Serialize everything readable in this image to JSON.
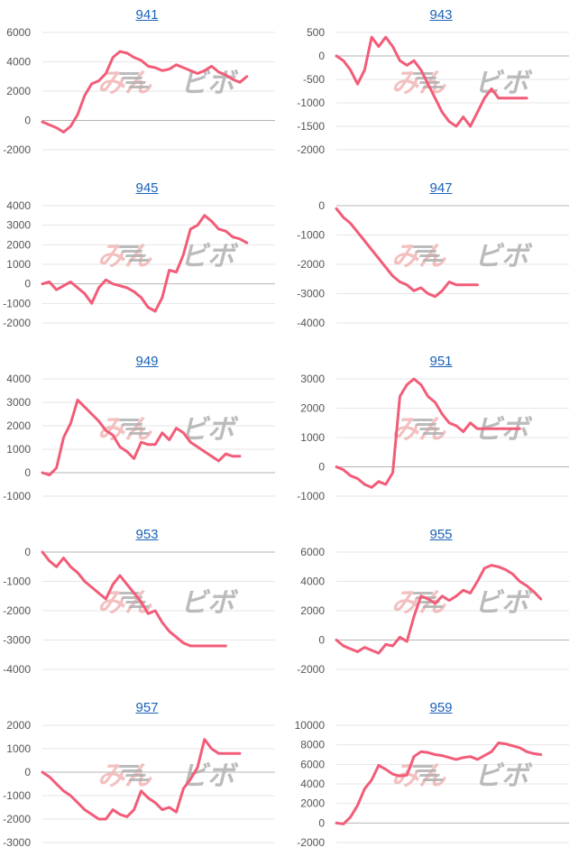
{
  "colors": {
    "line": "#f25c78",
    "link": "#1a62b8",
    "grid": "#e6e6e6",
    "zero": "#b4b4b4"
  },
  "watermark": {
    "left": "みん",
    "right": "ビボ"
  },
  "chart_data": [
    {
      "type": "line",
      "title": "941",
      "yticks": [
        6000,
        4000,
        2000,
        0,
        -2000
      ],
      "ylim": [
        -2000,
        6000
      ],
      "x": [
        0,
        1,
        2,
        3,
        4,
        5,
        6,
        7,
        8,
        9,
        10,
        11,
        12,
        13,
        14,
        15,
        16,
        17,
        18,
        19,
        20,
        21,
        22,
        23,
        24,
        25,
        26,
        27,
        28,
        29
      ],
      "values": [
        -100,
        -300,
        -500,
        -800,
        -400,
        400,
        1700,
        2500,
        2700,
        3200,
        4300,
        4700,
        4600,
        4300,
        4100,
        3700,
        3600,
        3400,
        3500,
        3800,
        3600,
        3400,
        3200,
        3400,
        3700,
        3300,
        3100,
        2800,
        2600,
        3000
      ]
    },
    {
      "type": "line",
      "title": "943",
      "yticks": [
        500,
        0,
        -500,
        -1000,
        -1500,
        -2000
      ],
      "ylim": [
        -2000,
        500
      ],
      "x": [
        0,
        1,
        2,
        3,
        4,
        5,
        6,
        7,
        8,
        9,
        10,
        11,
        12,
        13,
        14,
        15,
        16,
        17,
        18,
        19,
        20,
        21,
        22,
        23,
        24,
        25,
        26,
        27
      ],
      "values": [
        0,
        -100,
        -300,
        -600,
        -300,
        400,
        200,
        400,
        200,
        -100,
        -200,
        -100,
        -300,
        -600,
        -900,
        -1200,
        -1400,
        -1500,
        -1300,
        -1500,
        -1200,
        -900,
        -700,
        -900,
        -900,
        -900,
        -900,
        -900
      ]
    },
    {
      "type": "line",
      "title": "945",
      "yticks": [
        4000,
        3000,
        2000,
        1000,
        0,
        -1000,
        -2000
      ],
      "ylim": [
        -2000,
        4000
      ],
      "x": [
        0,
        1,
        2,
        3,
        4,
        5,
        6,
        7,
        8,
        9,
        10,
        11,
        12,
        13,
        14,
        15,
        16,
        17,
        18,
        19,
        20,
        21,
        22,
        23,
        24,
        25,
        26,
        27,
        28,
        29
      ],
      "values": [
        0,
        100,
        -300,
        -100,
        100,
        -200,
        -500,
        -1000,
        -200,
        200,
        0,
        -100,
        -200,
        -400,
        -700,
        -1200,
        -1400,
        -700,
        700,
        600,
        1500,
        2800,
        3000,
        3500,
        3200,
        2800,
        2700,
        2400,
        2300,
        2100
      ]
    },
    {
      "type": "line",
      "title": "947",
      "yticks": [
        0,
        -1000,
        -2000,
        -3000,
        -4000
      ],
      "ylim": [
        -4000,
        0
      ],
      "x": [
        0,
        1,
        2,
        3,
        4,
        5,
        6,
        7,
        8,
        9,
        10,
        11,
        12,
        13,
        14,
        15,
        16,
        17,
        18,
        19,
        20
      ],
      "values": [
        -100,
        -400,
        -600,
        -900,
        -1200,
        -1500,
        -1800,
        -2100,
        -2400,
        -2600,
        -2700,
        -2900,
        -2800,
        -3000,
        -3100,
        -2900,
        -2600,
        -2700,
        -2700,
        -2700,
        -2700
      ]
    },
    {
      "type": "line",
      "title": "949",
      "yticks": [
        4000,
        3000,
        2000,
        1000,
        0,
        -1000
      ],
      "ylim": [
        -1000,
        4000
      ],
      "x": [
        0,
        1,
        2,
        3,
        4,
        5,
        6,
        7,
        8,
        9,
        10,
        11,
        12,
        13,
        14,
        15,
        16,
        17,
        18,
        19,
        20,
        21,
        22,
        23,
        24,
        25,
        26,
        27,
        28
      ],
      "values": [
        0,
        -100,
        200,
        1500,
        2100,
        3100,
        2800,
        2500,
        2200,
        1800,
        1600,
        1100,
        900,
        600,
        1300,
        1200,
        1200,
        1700,
        1400,
        1900,
        1700,
        1300,
        1100,
        900,
        700,
        500,
        800,
        700,
        700
      ]
    },
    {
      "type": "line",
      "title": "951",
      "yticks": [
        3000,
        2000,
        1000,
        0,
        -1000
      ],
      "ylim": [
        -1000,
        3000
      ],
      "x": [
        0,
        1,
        2,
        3,
        4,
        5,
        6,
        7,
        8,
        9,
        10,
        11,
        12,
        13,
        14,
        15,
        16,
        17,
        18,
        19,
        20,
        21,
        22,
        23,
        24,
        25,
        26
      ],
      "values": [
        0,
        -100,
        -300,
        -400,
        -600,
        -700,
        -500,
        -600,
        -200,
        2400,
        2800,
        3000,
        2800,
        2400,
        2200,
        1800,
        1500,
        1400,
        1200,
        1500,
        1300,
        1300,
        1300,
        1300,
        1300,
        1300,
        1300
      ]
    },
    {
      "type": "line",
      "title": "953",
      "yticks": [
        0,
        -1000,
        -2000,
        -3000,
        -4000
      ],
      "ylim": [
        -4000,
        0
      ],
      "x": [
        0,
        1,
        2,
        3,
        4,
        5,
        6,
        7,
        8,
        9,
        10,
        11,
        12,
        13,
        14,
        15,
        16,
        17,
        18,
        19,
        20,
        21,
        22,
        23,
        24,
        25,
        26
      ],
      "values": [
        0,
        -300,
        -500,
        -200,
        -500,
        -700,
        -1000,
        -1200,
        -1400,
        -1600,
        -1100,
        -800,
        -1100,
        -1400,
        -1700,
        -2100,
        -2000,
        -2400,
        -2700,
        -2900,
        -3100,
        -3200,
        -3200,
        -3200,
        -3200,
        -3200,
        -3200
      ]
    },
    {
      "type": "line",
      "title": "955",
      "yticks": [
        6000,
        4000,
        2000,
        0,
        -2000
      ],
      "ylim": [
        -2000,
        6000
      ],
      "x": [
        0,
        1,
        2,
        3,
        4,
        5,
        6,
        7,
        8,
        9,
        10,
        11,
        12,
        13,
        14,
        15,
        16,
        17,
        18,
        19,
        20,
        21,
        22,
        23,
        24,
        25,
        26,
        27,
        28,
        29
      ],
      "values": [
        0,
        -400,
        -600,
        -800,
        -500,
        -700,
        -900,
        -300,
        -400,
        200,
        -100,
        1600,
        3000,
        2800,
        2500,
        3000,
        2700,
        3000,
        3400,
        3200,
        4000,
        4900,
        5100,
        5000,
        4800,
        4500,
        4000,
        3700,
        3300,
        2800
      ]
    },
    {
      "type": "line",
      "title": "957",
      "yticks": [
        2000,
        1000,
        0,
        -1000,
        -2000,
        -3000
      ],
      "ylim": [
        -3000,
        2000
      ],
      "x": [
        0,
        1,
        2,
        3,
        4,
        5,
        6,
        7,
        8,
        9,
        10,
        11,
        12,
        13,
        14,
        15,
        16,
        17,
        18,
        19,
        20,
        21,
        22,
        23,
        24,
        25,
        26,
        27,
        28
      ],
      "values": [
        0,
        -200,
        -500,
        -800,
        -1000,
        -1300,
        -1600,
        -1800,
        -2000,
        -2000,
        -1600,
        -1800,
        -1900,
        -1600,
        -800,
        -1100,
        -1300,
        -1600,
        -1500,
        -1700,
        -700,
        -300,
        200,
        1400,
        1000,
        800,
        800,
        800,
        800
      ]
    },
    {
      "type": "line",
      "title": "959",
      "yticks": [
        10000,
        8000,
        6000,
        4000,
        2000,
        0,
        -2000
      ],
      "ylim": [
        -2000,
        10000
      ],
      "x": [
        0,
        1,
        2,
        3,
        4,
        5,
        6,
        7,
        8,
        9,
        10,
        11,
        12,
        13,
        14,
        15,
        16,
        17,
        18,
        19,
        20,
        21,
        22,
        23,
        24,
        25,
        26,
        27,
        28,
        29
      ],
      "values": [
        0,
        -100,
        600,
        1800,
        3500,
        4400,
        5900,
        5500,
        5000,
        4800,
        4900,
        6800,
        7300,
        7200,
        7000,
        6900,
        6700,
        6500,
        6700,
        6800,
        6500,
        6900,
        7300,
        8200,
        8100,
        7900,
        7700,
        7300,
        7100,
        7000
      ]
    }
  ]
}
